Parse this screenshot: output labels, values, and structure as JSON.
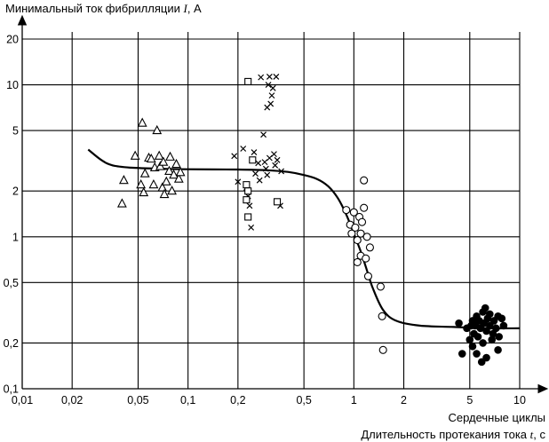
{
  "chart_data": {
    "type": "scatter",
    "title_text": "Минимальный ток фибрилляции ",
    "title_var": "I",
    "title_unit": ", А",
    "xlabel_top": "Сердечные циклы",
    "xlabel_text": "Длительность протекания тока ",
    "xlabel_var": "t",
    "xlabel_unit": ", с",
    "x_scale": "log",
    "y_scale": "log",
    "xlim": [
      0.01,
      10
    ],
    "ylim": [
      0.1,
      20
    ],
    "grid": true,
    "x_ticks": [
      {
        "value": 0.01,
        "label": "0,01"
      },
      {
        "value": 0.02,
        "label": "0,02"
      },
      {
        "value": 0.05,
        "label": "0,05"
      },
      {
        "value": 0.1,
        "label": "0,1"
      },
      {
        "value": 0.2,
        "label": "0,2"
      },
      {
        "value": 0.5,
        "label": "0,5"
      },
      {
        "value": 1,
        "label": "1"
      },
      {
        "value": 2,
        "label": "2"
      },
      {
        "value": 5,
        "label": "5"
      },
      {
        "value": 10,
        "label": "10"
      }
    ],
    "y_ticks": [
      {
        "value": 0.1,
        "label": "0,1"
      },
      {
        "value": 0.2,
        "label": "0,2"
      },
      {
        "value": 0.5,
        "label": "0,5"
      },
      {
        "value": 1,
        "label": "1"
      },
      {
        "value": 2,
        "label": "2"
      },
      {
        "value": 5,
        "label": "5"
      },
      {
        "value": 10,
        "label": "10"
      },
      {
        "value": 20,
        "label": "20"
      }
    ],
    "series": [
      {
        "name": "triangle",
        "marker": "triangle",
        "points": [
          [
            0.04,
            1.65
          ],
          [
            0.041,
            2.35
          ],
          [
            0.048,
            3.4
          ],
          [
            0.052,
            2.2
          ],
          [
            0.053,
            5.6
          ],
          [
            0.054,
            1.95
          ],
          [
            0.055,
            2.6
          ],
          [
            0.058,
            3.3
          ],
          [
            0.06,
            3.25
          ],
          [
            0.062,
            2.2
          ],
          [
            0.063,
            2.85
          ],
          [
            0.065,
            5.0
          ],
          [
            0.067,
            3.4
          ],
          [
            0.068,
            2.9
          ],
          [
            0.07,
            2.1
          ],
          [
            0.071,
            3.1
          ],
          [
            0.072,
            1.9
          ],
          [
            0.074,
            2.3
          ],
          [
            0.077,
            2.7
          ],
          [
            0.078,
            3.35
          ],
          [
            0.08,
            2.0
          ],
          [
            0.082,
            2.55
          ],
          [
            0.085,
            3.0
          ],
          [
            0.088,
            2.4
          ],
          [
            0.09,
            2.65
          ]
        ]
      },
      {
        "name": "cross",
        "marker": "cross",
        "points": [
          [
            0.19,
            3.4
          ],
          [
            0.2,
            2.3
          ],
          [
            0.215,
            3.8
          ],
          [
            0.225,
            2.1
          ],
          [
            0.23,
            1.85
          ],
          [
            0.235,
            1.6
          ],
          [
            0.24,
            1.15
          ],
          [
            0.25,
            3.6
          ],
          [
            0.255,
            2.6
          ],
          [
            0.265,
            3.05
          ],
          [
            0.27,
            2.35
          ],
          [
            0.275,
            11.2
          ],
          [
            0.285,
            4.7
          ],
          [
            0.29,
            3.1
          ],
          [
            0.295,
            2.8
          ],
          [
            0.3,
            2.55
          ],
          [
            0.305,
            10.0
          ],
          [
            0.31,
            11.3
          ],
          [
            0.315,
            7.5
          ],
          [
            0.32,
            8.5
          ],
          [
            0.325,
            9.5
          ],
          [
            0.33,
            3.5
          ],
          [
            0.335,
            2.95
          ],
          [
            0.34,
            11.3
          ],
          [
            0.345,
            3.2
          ],
          [
            0.36,
            1.6
          ],
          [
            0.365,
            2.7
          ],
          [
            0.31,
            3.3
          ],
          [
            0.3,
            7.1
          ]
        ]
      },
      {
        "name": "square",
        "marker": "square",
        "points": [
          [
            0.23,
            10.5
          ],
          [
            0.225,
            2.2
          ],
          [
            0.23,
            2.0
          ],
          [
            0.225,
            1.75
          ],
          [
            0.23,
            1.35
          ],
          [
            0.245,
            3.2
          ],
          [
            0.345,
            1.7
          ]
        ]
      },
      {
        "name": "open-circle",
        "marker": "circle-open",
        "points": [
          [
            0.9,
            1.5
          ],
          [
            0.95,
            1.2
          ],
          [
            0.97,
            1.05
          ],
          [
            1.0,
            1.45
          ],
          [
            1.02,
            1.15
          ],
          [
            1.05,
            0.95
          ],
          [
            1.08,
            1.35
          ],
          [
            1.1,
            1.05
          ],
          [
            1.12,
            1.25
          ],
          [
            1.15,
            1.55
          ],
          [
            1.05,
            0.68
          ],
          [
            1.1,
            0.75
          ],
          [
            1.15,
            2.35
          ],
          [
            1.18,
            0.72
          ],
          [
            1.2,
            1.0
          ],
          [
            1.22,
            0.55
          ],
          [
            1.25,
            0.85
          ],
          [
            1.45,
            0.47
          ],
          [
            1.48,
            0.3
          ],
          [
            1.5,
            0.18
          ]
        ]
      },
      {
        "name": "filled-circle",
        "marker": "circle-filled",
        "points": [
          [
            4.3,
            0.27
          ],
          [
            4.5,
            0.17
          ],
          [
            4.8,
            0.25
          ],
          [
            5.0,
            0.21
          ],
          [
            5.1,
            0.26
          ],
          [
            5.2,
            0.28
          ],
          [
            5.2,
            0.19
          ],
          [
            5.3,
            0.23
          ],
          [
            5.4,
            0.26
          ],
          [
            5.5,
            0.3
          ],
          [
            5.5,
            0.17
          ],
          [
            5.6,
            0.22
          ],
          [
            5.7,
            0.28
          ],
          [
            5.8,
            0.25
          ],
          [
            5.9,
            0.15
          ],
          [
            6.0,
            0.32
          ],
          [
            6.0,
            0.2
          ],
          [
            6.1,
            0.27
          ],
          [
            6.2,
            0.34
          ],
          [
            6.3,
            0.24
          ],
          [
            6.3,
            0.16
          ],
          [
            6.4,
            0.29
          ],
          [
            6.6,
            0.26
          ],
          [
            6.8,
            0.21
          ],
          [
            7.0,
            0.28
          ],
          [
            7.2,
            0.25
          ],
          [
            7.4,
            0.3
          ],
          [
            7.4,
            0.18
          ],
          [
            7.5,
            0.22
          ],
          [
            7.8,
            0.29
          ],
          [
            8.0,
            0.26
          ],
          [
            6.6,
            0.31
          ],
          [
            6.9,
            0.23
          ]
        ]
      }
    ],
    "curve": {
      "name": "threshold-curve",
      "points": [
        [
          0.025,
          3.75
        ],
        [
          0.03,
          3.2
        ],
        [
          0.035,
          2.95
        ],
        [
          0.045,
          2.85
        ],
        [
          0.07,
          2.8
        ],
        [
          0.1,
          2.78
        ],
        [
          0.2,
          2.77
        ],
        [
          0.3,
          2.74
        ],
        [
          0.4,
          2.67
        ],
        [
          0.5,
          2.55
        ],
        [
          0.6,
          2.4
        ],
        [
          0.7,
          2.15
        ],
        [
          0.8,
          1.8
        ],
        [
          0.9,
          1.4
        ],
        [
          1.0,
          1.05
        ],
        [
          1.1,
          0.8
        ],
        [
          1.2,
          0.6
        ],
        [
          1.3,
          0.46
        ],
        [
          1.5,
          0.33
        ],
        [
          1.8,
          0.28
        ],
        [
          2.5,
          0.26
        ],
        [
          4.0,
          0.255
        ],
        [
          6.0,
          0.25
        ],
        [
          10.0,
          0.25
        ]
      ]
    }
  }
}
